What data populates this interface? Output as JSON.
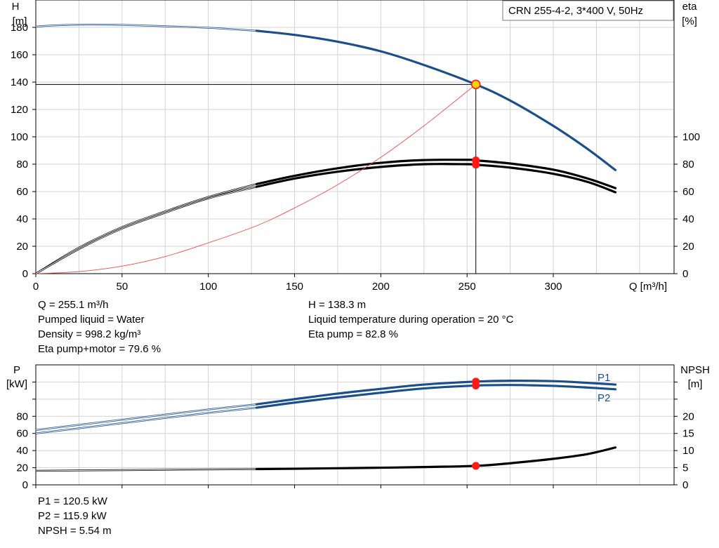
{
  "chart_data": [
    {
      "type": "line",
      "title": "",
      "legend_box": "CRN 255-4-2, 3*400 V, 50Hz",
      "xlabel": "Q [m³/h]",
      "ylabel_left": [
        "H",
        "[m]"
      ],
      "ylabel_right": [
        "eta",
        "[%]"
      ],
      "xlim": [
        0,
        370
      ],
      "ylim_left": [
        0,
        200
      ],
      "ylim_right": [
        0,
        200
      ],
      "x_ticks": [
        "0",
        "50",
        "100",
        "150",
        "200",
        "250",
        "300"
      ],
      "y_ticks_left": [
        "0",
        "20",
        "40",
        "60",
        "80",
        "100",
        "120",
        "140",
        "160",
        "180"
      ],
      "y_ticks_right": [
        "0",
        "20",
        "40",
        "60",
        "80",
        "100"
      ],
      "grid": true,
      "duty_point": {
        "q": 255.1,
        "h": 138.3,
        "eta_pump": 82.8,
        "eta_total": 79.6
      },
      "series": [
        {
          "id": "head",
          "color": "#1a4f8b",
          "axis": "left",
          "thin_segment": [
            [
              0,
              180.6
            ],
            [
              10,
              181.4
            ],
            [
              30,
              182
            ],
            [
              50,
              181.8
            ],
            [
              75,
              180.8
            ],
            [
              100,
              179.7
            ],
            [
              128,
              177.5
            ]
          ],
          "thick_segment": [
            [
              128,
              177.5
            ],
            [
              150,
              174.5
            ],
            [
              175,
              169.5
            ],
            [
              200,
              162.5
            ],
            [
              225,
              152.5
            ],
            [
              255.1,
              138.3
            ],
            [
              275,
              126.5
            ],
            [
              300,
              108
            ],
            [
              320,
              91
            ],
            [
              336,
              75.7
            ]
          ]
        },
        {
          "id": "eta_pump",
          "color": "#000000",
          "axis": "right",
          "thin_segment": [
            [
              0,
              0
            ],
            [
              25,
              19
            ],
            [
              50,
              34
            ],
            [
              75,
              45.5
            ],
            [
              100,
              56
            ],
            [
              128,
              65.5
            ]
          ],
          "thick_segment": [
            [
              128,
              65.5
            ],
            [
              150,
              71.5
            ],
            [
              175,
              77
            ],
            [
              200,
              81
            ],
            [
              225,
              83
            ],
            [
              250,
              83.2
            ],
            [
              255.1,
              82.8
            ],
            [
              275,
              80.5
            ],
            [
              300,
              76
            ],
            [
              320,
              69.5
            ],
            [
              336,
              62.5
            ]
          ]
        },
        {
          "id": "eta_total",
          "color": "#000000",
          "axis": "right",
          "thin_segment": [
            [
              0,
              0
            ],
            [
              25,
              18
            ],
            [
              50,
              33
            ],
            [
              75,
              44.5
            ],
            [
              100,
              55
            ],
            [
              128,
              63.5
            ]
          ],
          "thick_segment": [
            [
              128,
              63.5
            ],
            [
              150,
              69.5
            ],
            [
              175,
              74.5
            ],
            [
              200,
              78
            ],
            [
              225,
              80
            ],
            [
              250,
              80
            ],
            [
              255.1,
              79.6
            ],
            [
              275,
              77.5
            ],
            [
              300,
              73
            ],
            [
              320,
              67
            ],
            [
              336,
              59.5
            ]
          ]
        },
        {
          "id": "system_curve",
          "color": "#f04a4a",
          "axis": "left",
          "values": [
            [
              0,
              0
            ],
            [
              25,
              1.5
            ],
            [
              50,
              5.5
            ],
            [
              75,
              12.5
            ],
            [
              100,
              22.5
            ],
            [
              128,
              35
            ],
            [
              150,
              48
            ],
            [
              175,
              65
            ],
            [
              200,
              85
            ],
            [
              225,
              108
            ],
            [
              255.1,
              138.3
            ]
          ]
        }
      ]
    },
    {
      "type": "line",
      "title": "",
      "xlim": [
        0,
        370
      ],
      "ylabel_left": [
        "P",
        "[kW]"
      ],
      "ylabel_right": [
        "NPSH",
        "[m]"
      ],
      "ylim_left": [
        0,
        140
      ],
      "ylim_right": [
        0,
        35
      ],
      "y_ticks_left": [
        "0",
        "20",
        "40",
        "60",
        "80"
      ],
      "y_ticks_right": [
        "0",
        "5",
        "10",
        "15",
        "20"
      ],
      "grid": true,
      "duty_point": {
        "q": 255.1,
        "p1": 120.5,
        "p2": 115.9,
        "npsh": 5.54
      },
      "series": [
        {
          "name": "P1",
          "color": "#1a4f8b",
          "axis": "left",
          "thin_segment": [
            [
              0,
              64
            ],
            [
              25,
              70
            ],
            [
              50,
              76
            ],
            [
              75,
              82
            ],
            [
              100,
              88
            ],
            [
              128,
              94
            ]
          ],
          "thick_segment": [
            [
              128,
              94
            ],
            [
              150,
              100
            ],
            [
              175,
              106.5
            ],
            [
              200,
              112
            ],
            [
              225,
              117
            ],
            [
              255.1,
              120.5
            ],
            [
              275,
              121.5
            ],
            [
              300,
              121
            ],
            [
              320,
              119
            ],
            [
              336,
              117
            ]
          ]
        },
        {
          "name": "P2",
          "color": "#1a4f8b",
          "axis": "left",
          "thin_segment": [
            [
              0,
              60
            ],
            [
              25,
              66
            ],
            [
              50,
              72
            ],
            [
              75,
              78
            ],
            [
              100,
              84
            ],
            [
              128,
              90
            ]
          ],
          "thick_segment": [
            [
              128,
              90
            ],
            [
              150,
              96
            ],
            [
              175,
              102
            ],
            [
              200,
              107.5
            ],
            [
              225,
              112.5
            ],
            [
              255.1,
              115.9
            ],
            [
              275,
              116.5
            ],
            [
              300,
              115.5
            ],
            [
              320,
              113.5
            ],
            [
              336,
              111.5
            ]
          ]
        },
        {
          "id": "npsh",
          "color": "#000000",
          "axis": "right",
          "thin_segment": [
            [
              0,
              4.1
            ],
            [
              50,
              4.3
            ],
            [
              100,
              4.5
            ],
            [
              128,
              4.6
            ]
          ],
          "thick_segment": [
            [
              128,
              4.6
            ],
            [
              150,
              4.7
            ],
            [
              175,
              4.85
            ],
            [
              200,
              5.0
            ],
            [
              225,
              5.2
            ],
            [
              255.1,
              5.54
            ],
            [
              275,
              6.3
            ],
            [
              300,
              7.6
            ],
            [
              320,
              9.0
            ],
            [
              336,
              10.9
            ]
          ]
        }
      ]
    }
  ],
  "info_top": {
    "left": [
      "Q = 255.1 m³/h",
      "Pumped liquid = Water",
      "Density = 998.2 kg/m³",
      "Eta pump+motor = 79.6 %"
    ],
    "right": [
      "H = 138.3 m",
      "Liquid temperature during operation = 20 °C",
      "Eta pump = 82.8 %"
    ]
  },
  "info_bottom": {
    "left": [
      "P1 = 120.5 kW",
      "P2 = 115.9 kW",
      "NPSH = 5.54 m"
    ]
  },
  "colors": {
    "head": "#1a4f8b",
    "power": "#1a4f8b",
    "eta": "#000000",
    "system": "#f04a4a",
    "marker": "#ff1a1a",
    "duty_head_fill": "#ffd400",
    "grid": "#d3d3d3"
  }
}
